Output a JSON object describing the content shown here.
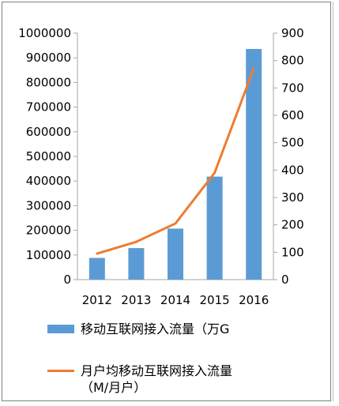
{
  "chart_data": {
    "type": "bar+line",
    "categories": [
      "2012",
      "2013",
      "2014",
      "2015",
      "2016"
    ],
    "series": [
      {
        "name": "移动互联网接入流量（万G",
        "type": "bar",
        "axis": "left",
        "color": "#5b9bd5",
        "values": [
          88000,
          128000,
          207000,
          418000,
          936000
        ]
      },
      {
        "name_line1": "月户均移动互联网接入流量",
        "name_line2": "（M/月户）",
        "type": "line",
        "axis": "right",
        "color": "#ed7d31",
        "values": [
          95,
          138,
          205,
          390,
          772
        ]
      }
    ],
    "y_left": {
      "min": 0,
      "max": 1000000,
      "ticks": [
        "0",
        "100000",
        "200000",
        "300000",
        "400000",
        "500000",
        "600000",
        "700000",
        "800000",
        "900000",
        "1000000"
      ]
    },
    "y_right": {
      "min": 0,
      "max": 900,
      "ticks": [
        "0",
        "100",
        "200",
        "300",
        "400",
        "500",
        "600",
        "700",
        "800",
        "900"
      ]
    },
    "grid": false,
    "legend_position": "bottom"
  }
}
